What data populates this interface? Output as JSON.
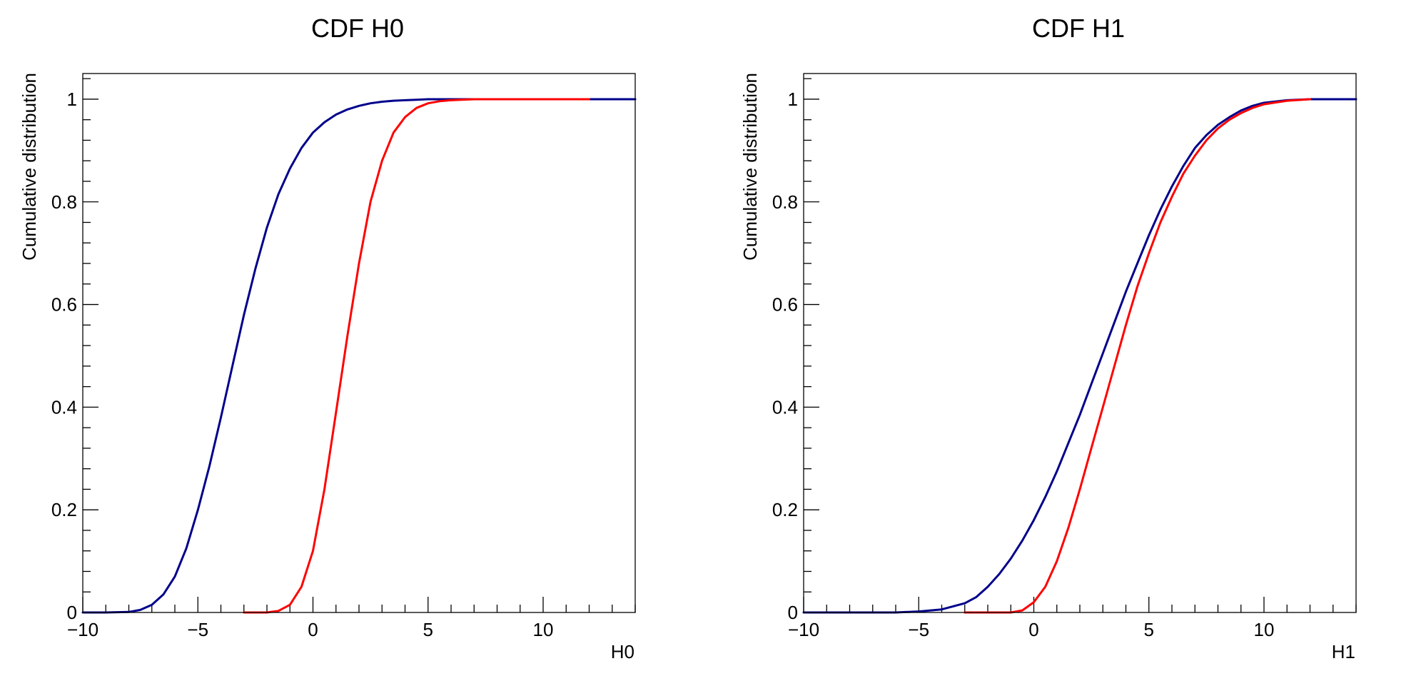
{
  "chart_data": [
    {
      "type": "line",
      "title": "CDF H0",
      "xlabel": "H0",
      "ylabel": "Cumulative distribution",
      "xlim": [
        -10,
        14
      ],
      "ylim": [
        0,
        1.05
      ],
      "x_ticks": [
        -10,
        -5,
        0,
        5,
        10
      ],
      "x_tick_labels": [
        "−10",
        "−5",
        "0",
        "5",
        "10"
      ],
      "y_ticks": [
        0,
        0.2,
        0.4,
        0.6,
        0.8,
        1
      ],
      "y_tick_labels": [
        "0",
        "0.2",
        "0.4",
        "0.6",
        "0.8",
        "1"
      ],
      "grid": false,
      "series": [
        {
          "color": "#00008b",
          "x": [
            -10,
            -9,
            -8,
            -7.5,
            -7,
            -6.5,
            -6,
            -5.5,
            -5,
            -4.5,
            -4,
            -3.5,
            -3,
            -2.5,
            -2,
            -1.5,
            -1,
            -0.5,
            0,
            0.5,
            1,
            1.5,
            2,
            2.5,
            3,
            3.5,
            4,
            4.5,
            5,
            6,
            8,
            10,
            14
          ],
          "y": [
            0,
            0,
            0.001,
            0.005,
            0.015,
            0.035,
            0.07,
            0.125,
            0.2,
            0.285,
            0.38,
            0.48,
            0.58,
            0.67,
            0.75,
            0.815,
            0.865,
            0.905,
            0.935,
            0.955,
            0.97,
            0.98,
            0.987,
            0.992,
            0.995,
            0.997,
            0.998,
            0.999,
            1,
            1,
            1,
            1,
            1
          ]
        },
        {
          "color": "#ff0000",
          "x": [
            -3,
            -2,
            -1.5,
            -1,
            -0.5,
            0,
            0.5,
            1,
            1.5,
            2,
            2.5,
            3,
            3.5,
            4,
            4.5,
            5,
            5.5,
            6,
            7,
            8,
            10,
            12
          ],
          "y": [
            0,
            0,
            0.003,
            0.015,
            0.05,
            0.12,
            0.24,
            0.39,
            0.54,
            0.68,
            0.8,
            0.88,
            0.935,
            0.965,
            0.983,
            0.992,
            0.996,
            0.998,
            1,
            1,
            1,
            1
          ]
        }
      ]
    },
    {
      "type": "line",
      "title": "CDF H1",
      "xlabel": "H1",
      "ylabel": "Cumulative distribution",
      "xlim": [
        -10,
        14
      ],
      "ylim": [
        0,
        1.05
      ],
      "x_ticks": [
        -10,
        -5,
        0,
        5,
        10
      ],
      "x_tick_labels": [
        "−10",
        "−5",
        "0",
        "5",
        "10"
      ],
      "y_ticks": [
        0,
        0.2,
        0.4,
        0.6,
        0.8,
        1
      ],
      "y_tick_labels": [
        "0",
        "0.2",
        "0.4",
        "0.6",
        "0.8",
        "1"
      ],
      "grid": false,
      "series": [
        {
          "color": "#00008b",
          "x": [
            -10,
            -6,
            -5,
            -4,
            -3,
            -2.5,
            -2,
            -1.5,
            -1,
            -0.5,
            0,
            0.5,
            1,
            1.5,
            2,
            2.5,
            3,
            3.5,
            4,
            4.5,
            5,
            5.5,
            6,
            6.5,
            7,
            7.5,
            8,
            8.5,
            9,
            9.5,
            10,
            11,
            12,
            14
          ],
          "y": [
            0,
            0,
            0.002,
            0.006,
            0.018,
            0.03,
            0.05,
            0.075,
            0.105,
            0.14,
            0.18,
            0.225,
            0.275,
            0.33,
            0.385,
            0.445,
            0.505,
            0.565,
            0.625,
            0.68,
            0.735,
            0.785,
            0.83,
            0.87,
            0.905,
            0.93,
            0.95,
            0.965,
            0.978,
            0.987,
            0.993,
            0.998,
            1,
            1
          ]
        },
        {
          "color": "#ff0000",
          "x": [
            -3,
            -1,
            -0.5,
            0,
            0.5,
            1,
            1.5,
            2,
            2.5,
            3,
            3.5,
            4,
            4.5,
            5,
            5.5,
            6,
            6.5,
            7,
            7.5,
            8,
            8.5,
            9,
            9.5,
            10,
            11,
            12
          ],
          "y": [
            0,
            0,
            0.004,
            0.02,
            0.05,
            0.1,
            0.165,
            0.24,
            0.32,
            0.4,
            0.48,
            0.56,
            0.635,
            0.7,
            0.76,
            0.81,
            0.855,
            0.89,
            0.92,
            0.943,
            0.96,
            0.973,
            0.983,
            0.99,
            0.997,
            1
          ]
        }
      ]
    }
  ]
}
